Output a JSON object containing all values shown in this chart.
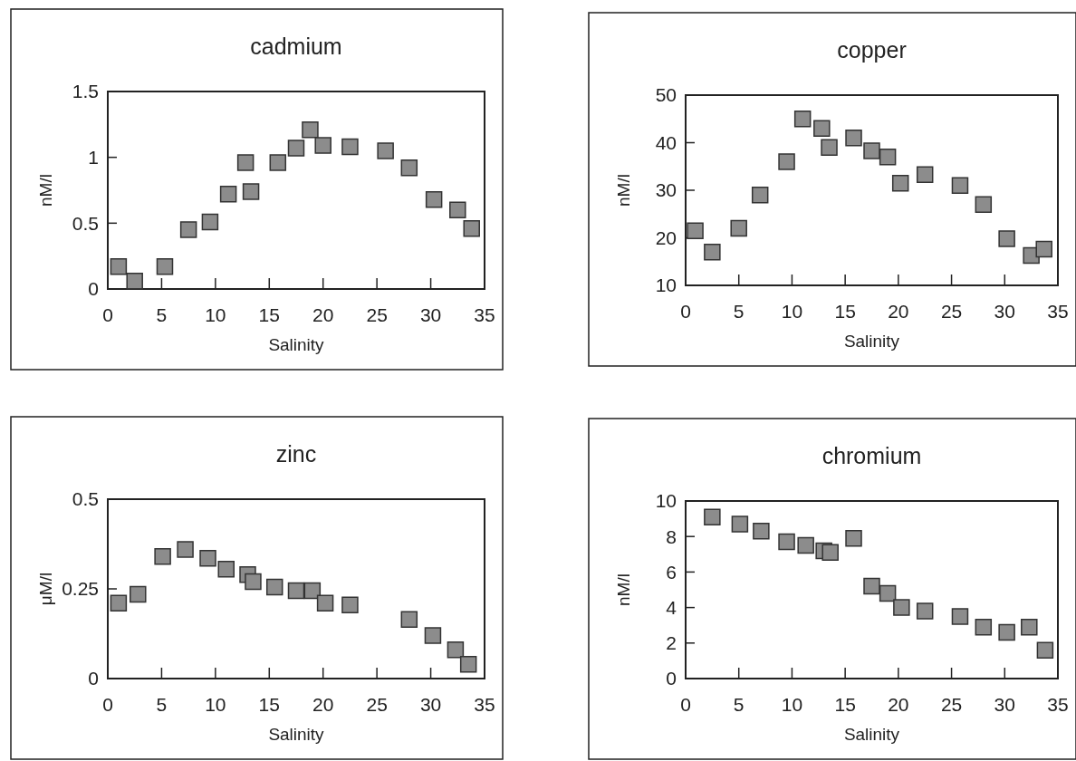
{
  "chart_data": [
    {
      "type": "scatter",
      "title": "cadmium",
      "xlabel": "Salinity",
      "ylabel": "nM/l",
      "marker": "square",
      "grid": false,
      "xlim": [
        0,
        35
      ],
      "xticks": [
        0,
        5,
        10,
        15,
        20,
        25,
        30,
        35
      ],
      "ylim": [
        0,
        1.5
      ],
      "yticks": [
        0,
        0.5,
        1,
        1.5
      ],
      "series": [
        {
          "color": "#8c8c8c",
          "x": [
            1,
            2.5,
            5.3,
            7.5,
            9.5,
            11.2,
            13.3,
            12.8,
            15.8,
            17.5,
            18.8,
            20,
            22.5,
            25.8,
            28,
            30.3,
            32.5,
            33.8
          ],
          "values": [
            0.17,
            0.06,
            0.17,
            0.45,
            0.51,
            0.72,
            0.74,
            0.96,
            0.96,
            1.07,
            1.21,
            1.09,
            1.08,
            1.05,
            0.92,
            0.68,
            0.6,
            0.46
          ]
        }
      ]
    },
    {
      "type": "scatter",
      "title": "copper",
      "xlabel": "Salinity",
      "ylabel": "nM/l",
      "marker": "square",
      "grid": false,
      "xlim": [
        0,
        35
      ],
      "xticks": [
        0,
        5,
        10,
        15,
        20,
        25,
        30,
        35
      ],
      "ylim": [
        10,
        50
      ],
      "yticks": [
        10,
        20,
        30,
        40,
        50
      ],
      "series": [
        {
          "color": "#8c8c8c",
          "x": [
            0.9,
            2.5,
            5,
            7,
            9.5,
            11,
            12.8,
            13.5,
            15.8,
            17.5,
            19,
            20.2,
            22.5,
            25.8,
            28,
            30.2,
            32.5,
            33.7
          ],
          "values": [
            21.5,
            17,
            22,
            29,
            36,
            45,
            43,
            39,
            41,
            38.3,
            37,
            31.5,
            33.3,
            31,
            27,
            19.8,
            16.3,
            17.6
          ]
        }
      ]
    },
    {
      "type": "scatter",
      "title": "zinc",
      "xlabel": "Salinity",
      "ylabel": "μM/l",
      "marker": "square",
      "grid": false,
      "xlim": [
        0,
        35
      ],
      "xticks": [
        0,
        5,
        10,
        15,
        20,
        25,
        30,
        35
      ],
      "ylim": [
        0,
        0.5
      ],
      "yticks": [
        0,
        0.25,
        0.5
      ],
      "series": [
        {
          "color": "#8c8c8c",
          "x": [
            1,
            2.8,
            5.1,
            7.2,
            9.3,
            11,
            13,
            13.5,
            15.5,
            17.5,
            19,
            20.2,
            22.5,
            28,
            30.2,
            32.3,
            33.5
          ],
          "values": [
            0.21,
            0.235,
            0.34,
            0.36,
            0.335,
            0.305,
            0.29,
            0.27,
            0.255,
            0.245,
            0.245,
            0.21,
            0.205,
            0.165,
            0.12,
            0.08,
            0.04
          ]
        }
      ]
    },
    {
      "type": "scatter",
      "title": "chromium",
      "xlabel": "Salinity",
      "ylabel": "nM/l",
      "marker": "square",
      "grid": false,
      "xlim": [
        0,
        35
      ],
      "xticks": [
        0,
        5,
        10,
        15,
        20,
        25,
        30,
        35
      ],
      "ylim": [
        0,
        10
      ],
      "yticks": [
        0,
        2,
        4,
        6,
        8,
        10
      ],
      "series": [
        {
          "color": "#8c8c8c",
          "x": [
            2.5,
            5.1,
            7.1,
            9.5,
            11.3,
            13,
            13.6,
            15.8,
            17.5,
            19,
            20.3,
            22.5,
            25.8,
            28,
            30.2,
            32.3,
            33.8
          ],
          "values": [
            9.1,
            8.7,
            8.3,
            7.7,
            7.5,
            7.2,
            7.1,
            7.9,
            5.2,
            4.8,
            4.0,
            3.8,
            3.5,
            2.9,
            2.6,
            2.9,
            1.6
          ]
        }
      ]
    }
  ]
}
